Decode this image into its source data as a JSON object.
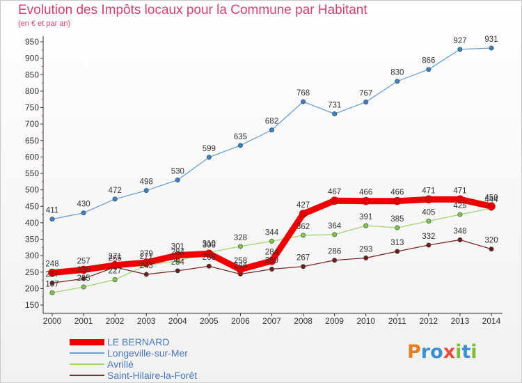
{
  "title": "Evolution des Impôts locaux pour la Commune par Habitant",
  "subtitle": "(en € et par an)",
  "logo": {
    "letters": [
      "P",
      "r",
      "o",
      "x",
      "i",
      "t",
      "i"
    ],
    "colors": [
      "#e67e22",
      "#3a8fd6",
      "#3a8fd6",
      "#e74c3c",
      "#7dbd2f",
      "#3a8fd6",
      "#7dbd2f"
    ]
  },
  "chart_data": {
    "type": "line",
    "title": "Evolution des Impôts locaux pour la Commune par Habitant",
    "subtitle": "(en € et par an)",
    "xlabel": "",
    "ylabel": "",
    "x": [
      "2000",
      "2001",
      "2002",
      "2003",
      "2004",
      "2005",
      "2006",
      "2007",
      "2008",
      "2009",
      "2010",
      "2011",
      "2012",
      "2013",
      "2014"
    ],
    "ylim": [
      150,
      950
    ],
    "yticks": [
      150,
      200,
      250,
      300,
      350,
      400,
      450,
      500,
      550,
      600,
      650,
      700,
      750,
      800,
      850,
      900,
      950
    ],
    "grid": false,
    "legend_position": "bottom-left",
    "series": [
      {
        "name": "LE BERNARD",
        "color": "#ee0000",
        "width": 9,
        "dot": "#dd0000",
        "values": [
          248,
          257,
          271,
          279,
          301,
          306,
          258,
          284,
          427,
          467,
          466,
          466,
          471,
          471,
          450
        ]
      },
      {
        "name": "Longeville-sur-Mer",
        "color": "#6a9fd4",
        "width": 1.3,
        "dot": "#3a7fc4",
        "values": [
          411,
          430,
          472,
          498,
          530,
          599,
          635,
          682,
          768,
          731,
          767,
          830,
          866,
          927,
          931
        ]
      },
      {
        "name": "Avrillé",
        "color": "#9ed670",
        "width": 1.3,
        "dot": "#7dc44a",
        "values": [
          187,
          205,
          227,
          271,
          284,
          310,
          328,
          344,
          362,
          364,
          391,
          385,
          405,
          425,
          444
        ]
      },
      {
        "name": "Saint-Hilaire-la-Forêt",
        "color": "#7a2a2a",
        "width": 1.3,
        "dot": "#6a1f1f",
        "values": [
          217,
          230,
          265,
          243,
          254,
          268,
          244,
          259,
          267,
          286,
          293,
          313,
          332,
          348,
          320
        ]
      }
    ]
  }
}
